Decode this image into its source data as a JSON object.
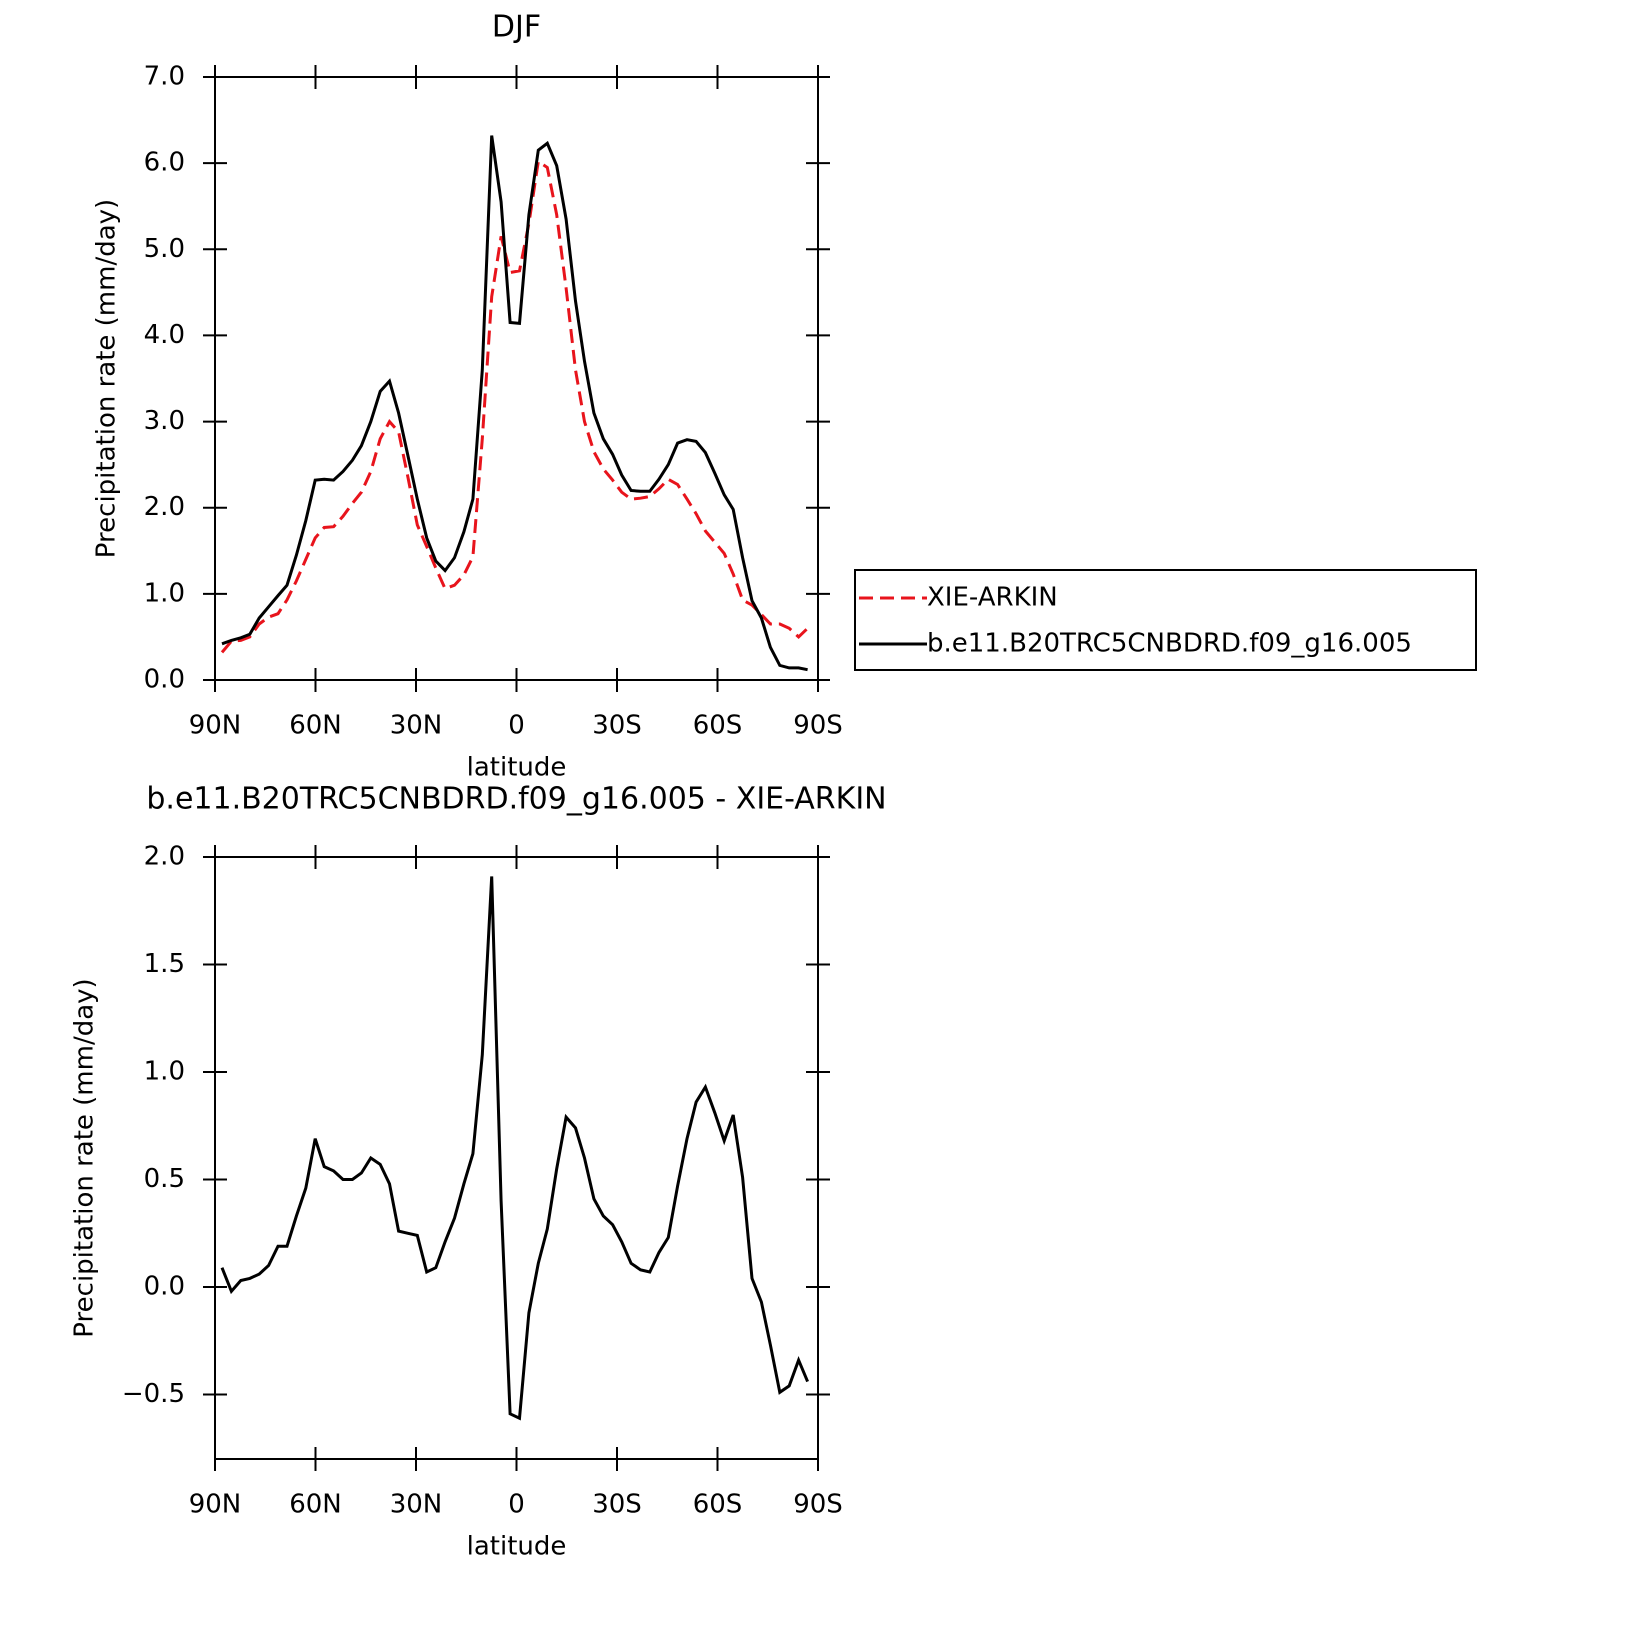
{
  "chart_data": [
    {
      "type": "line",
      "title": "DJF",
      "x_label": "latitude",
      "y_label": "Precipitation rate (mm/day)",
      "x": [
        87.9,
        85.1,
        82.3,
        79.6,
        76.8,
        74.0,
        71.2,
        68.5,
        65.7,
        62.9,
        60.1,
        57.4,
        54.6,
        51.8,
        49.0,
        46.3,
        43.5,
        40.7,
        37.9,
        35.2,
        32.4,
        29.6,
        26.8,
        24.1,
        21.3,
        18.5,
        15.7,
        13.0,
        10.2,
        7.4,
        4.6,
        1.9,
        -0.9,
        -3.7,
        -6.5,
        -9.2,
        -12.0,
        -14.8,
        -17.6,
        -20.3,
        -23.1,
        -25.9,
        -28.7,
        -31.4,
        -34.2,
        -37.0,
        -39.8,
        -42.5,
        -45.3,
        -48.1,
        -50.9,
        -53.6,
        -56.4,
        -59.2,
        -62.0,
        -64.7,
        -67.5,
        -70.3,
        -73.1,
        -75.8,
        -78.6,
        -81.4,
        -84.2,
        -86.9
      ],
      "series": [
        {
          "name": "XIE-ARKIN",
          "color": "#e8141c",
          "line_style": "dashed",
          "values": [
            0.32,
            0.45,
            0.46,
            0.5,
            0.65,
            0.73,
            0.77,
            0.93,
            1.15,
            1.4,
            1.65,
            1.77,
            1.78,
            1.9,
            2.05,
            2.18,
            2.42,
            2.8,
            3.0,
            2.88,
            2.35,
            1.8,
            1.55,
            1.3,
            1.06,
            1.1,
            1.22,
            1.43,
            2.8,
            4.45,
            5.15,
            4.73,
            4.75,
            5.3,
            6.02,
            5.95,
            5.4,
            4.55,
            3.6,
            3.0,
            2.65,
            2.45,
            2.32,
            2.18,
            2.1,
            2.11,
            2.13,
            2.22,
            2.33,
            2.27,
            2.1,
            1.93,
            1.73,
            1.6,
            1.47,
            1.23,
            0.93,
            0.87,
            0.76,
            0.65,
            0.65,
            0.6,
            0.5,
            0.6
          ]
        },
        {
          "name": "b.e11.B20TRC5CNBDRD.f09_g16.005",
          "color": "#000000",
          "line_style": "solid",
          "values": [
            0.42,
            0.46,
            0.49,
            0.53,
            0.72,
            0.85,
            0.98,
            1.1,
            1.45,
            1.85,
            2.32,
            2.33,
            2.32,
            2.42,
            2.55,
            2.72,
            3.0,
            3.35,
            3.47,
            3.1,
            2.6,
            2.1,
            1.65,
            1.38,
            1.27,
            1.42,
            1.72,
            2.1,
            3.6,
            6.32,
            5.55,
            4.15,
            4.14,
            5.4,
            6.15,
            6.23,
            5.97,
            5.35,
            4.4,
            3.7,
            3.1,
            2.8,
            2.62,
            2.38,
            2.2,
            2.19,
            2.19,
            2.33,
            2.5,
            2.75,
            2.79,
            2.77,
            2.64,
            2.4,
            2.15,
            1.98,
            1.42,
            0.92,
            0.72,
            0.38,
            0.17,
            0.14,
            0.14,
            0.12
          ]
        }
      ],
      "xlim": [
        90,
        -90
      ],
      "xticks": [
        {
          "value": 90,
          "label": "90N"
        },
        {
          "value": 60,
          "label": "60N"
        },
        {
          "value": 30,
          "label": "30N"
        },
        0,
        {
          "value": -30,
          "label": "30S"
        },
        {
          "value": -60,
          "label": "60S"
        },
        {
          "value": -90,
          "label": "90S"
        }
      ],
      "ylim": [
        0,
        7
      ],
      "yticks": [
        {
          "value": 0,
          "label": "0.0"
        },
        {
          "value": 1,
          "label": "1.0"
        },
        {
          "value": 2,
          "label": "2.0"
        },
        {
          "value": 3,
          "label": "3.0"
        },
        {
          "value": 4,
          "label": "4.0"
        },
        {
          "value": 5,
          "label": "5.0"
        },
        {
          "value": 6,
          "label": "6.0"
        },
        {
          "value": 7,
          "label": "7.0"
        }
      ],
      "legend": "right",
      "grid": false
    },
    {
      "type": "line",
      "title": "b.e11.B20TRC5CNBDRD.f09_g16.005 - XIE-ARKIN",
      "x_label": "latitude",
      "y_label": "Precipitation rate (mm/day)",
      "x": [
        87.9,
        85.1,
        82.3,
        79.6,
        76.8,
        74.0,
        71.2,
        68.5,
        65.7,
        62.9,
        60.1,
        57.4,
        54.6,
        51.8,
        49.0,
        46.3,
        43.5,
        40.7,
        37.9,
        35.2,
        32.4,
        29.6,
        26.8,
        24.1,
        21.3,
        18.5,
        15.7,
        13.0,
        10.2,
        7.4,
        4.6,
        1.9,
        -0.9,
        -3.7,
        -6.5,
        -9.2,
        -12.0,
        -14.8,
        -17.6,
        -20.3,
        -23.1,
        -25.9,
        -28.7,
        -31.4,
        -34.2,
        -37.0,
        -39.8,
        -42.5,
        -45.3,
        -48.1,
        -50.9,
        -53.6,
        -56.4,
        -59.2,
        -62.0,
        -64.7,
        -67.5,
        -70.3,
        -73.1,
        -75.8,
        -78.6,
        -81.4,
        -84.2,
        -86.9
      ],
      "color": "#000000",
      "values": [
        0.09,
        -0.02,
        0.03,
        0.04,
        0.06,
        0.1,
        0.19,
        0.19,
        0.33,
        0.46,
        0.69,
        0.56,
        0.54,
        0.5,
        0.5,
        0.53,
        0.6,
        0.57,
        0.48,
        0.26,
        0.25,
        0.24,
        0.07,
        0.09,
        0.21,
        0.32,
        0.48,
        0.62,
        1.08,
        1.91,
        0.4,
        -0.59,
        -0.61,
        -0.12,
        0.11,
        0.27,
        0.55,
        0.79,
        0.74,
        0.6,
        0.41,
        0.33,
        0.29,
        0.21,
        0.11,
        0.08,
        0.07,
        0.16,
        0.23,
        0.47,
        0.69,
        0.86,
        0.93,
        0.81,
        0.68,
        0.8,
        0.51,
        0.04,
        -0.07,
        -0.27,
        -0.49,
        -0.46,
        -0.34,
        -0.44
      ],
      "xlim": [
        90,
        -90
      ],
      "xticks": [
        {
          "value": 90,
          "label": "90N"
        },
        {
          "value": 60,
          "label": "60N"
        },
        {
          "value": 30,
          "label": "30N"
        },
        0,
        {
          "value": -30,
          "label": "30S"
        },
        {
          "value": -60,
          "label": "60S"
        },
        {
          "value": -90,
          "label": "90S"
        }
      ],
      "ylim": [
        -0.8,
        2.0
      ],
      "yticks": [
        {
          "value": -0.5,
          "label": "−0.5"
        },
        {
          "value": 0,
          "label": "0.0"
        },
        {
          "value": 0.5,
          "label": "0.5"
        },
        {
          "value": 1,
          "label": "1.0"
        },
        {
          "value": 1.5,
          "label": "1.5"
        },
        {
          "value": 2,
          "label": "2.0"
        }
      ],
      "grid": false
    }
  ]
}
